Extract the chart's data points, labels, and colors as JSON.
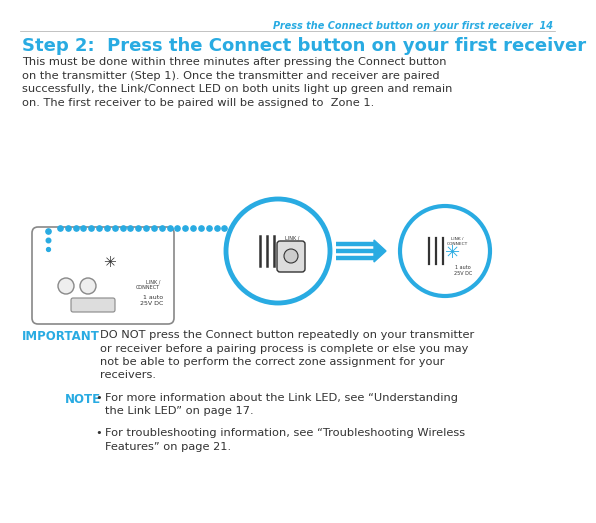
{
  "page_header": "Press the Connect button on your first receiver  14",
  "title": "Step 2:  Press the Connect button on your first receiver",
  "body_lines": [
    "This must be done within three minutes after pressing the Connect button",
    "on the transmitter (Step 1). Once the transmitter and receiver are paired",
    "successfully, the Link/Connect LED on both units light up green and remain",
    "on. The first receiver to be paired will be assigned to  Zone 1."
  ],
  "important_label": "IMPORTANT",
  "important_lines": [
    "DO NOT press the Connect button repeatedly on your transmitter",
    "or receiver before a pairing process is complete or else you may",
    "not be able to perform the correct zone assignment for your",
    "receivers."
  ],
  "note_label": "NOTE",
  "note_bullet1_lines": [
    "For more information about the Link LED, see “Understanding",
    "the Link LED” on page 17."
  ],
  "note_bullet2_lines": [
    "For troubleshooting information, see “Troubleshooting Wireless",
    "Features” on page 21."
  ],
  "cyan": "#29ABE2",
  "dark": "#333333",
  "white": "#FFFFFF",
  "gray_line": "#AAAAAA",
  "header_fs": 7.0,
  "title_fs": 13.0,
  "body_fs": 8.2,
  "label_fs": 8.5,
  "note_fs": 8.2
}
